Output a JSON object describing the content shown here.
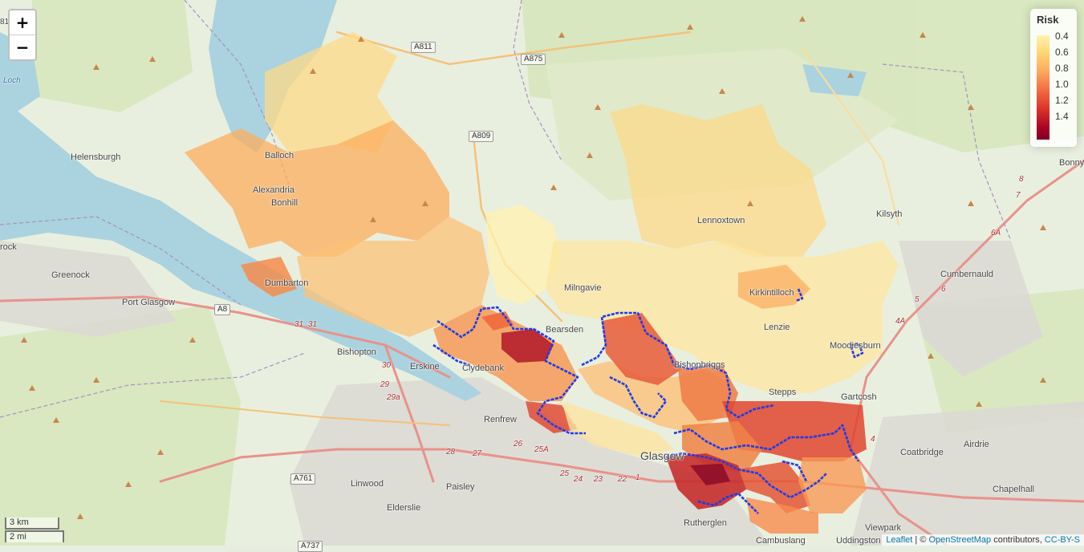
{
  "controls": {
    "zoom_in": "+",
    "zoom_out": "−"
  },
  "legend": {
    "title": "Risk",
    "labels": [
      "0.4",
      "0.6",
      "0.8",
      "1.0",
      "1.2",
      "1.4"
    ],
    "colors": [
      "#fff3b4",
      "#fed976",
      "#fdae61",
      "#f46d43",
      "#d73027",
      "#a50026",
      "#800026"
    ]
  },
  "scale": {
    "metric": "3 km",
    "imperial": "2 mi"
  },
  "attribution": {
    "leaflet": "Leaflet",
    "sep": " | © ",
    "osm": "OpenStreetMap",
    "rest": " contributors, ",
    "license": "CC-BY-S"
  },
  "places": {
    "helensburgh": "Helensburgh",
    "balloch": "Balloch",
    "alexandria": "Alexandria",
    "bonhill": "Bonhill",
    "dumbarton": "Dumbarton",
    "greenock": "Greenock",
    "port_glasgow": "Port Glasgow",
    "gourock": "rock",
    "bishopton": "Bishopton",
    "erskine": "Erskine",
    "clydebank": "Clydebank",
    "renfrew": "Renfrew",
    "linwood": "Linwood",
    "paisley": "Paisley",
    "elderslie": "Elderslie",
    "milngavie": "Milngavie",
    "bearsden": "Bearsden",
    "lennoxtown": "Lennoxtown",
    "kirkintilloch": "Kirkintilloch",
    "lenzie": "Lenzie",
    "kilsyth": "Kilsyth",
    "cumbernauld": "Cumbernauld",
    "moodiesburn": "Moodiesburn",
    "stepps": "Stepps",
    "gartcosh": "Gartcosh",
    "bishopbriggs": "Bishopbriggs",
    "glasgow": "Glasgow",
    "rutherglen": "Rutherglen",
    "cambuslang": "Cambuslang",
    "coatbridge": "Coatbridge",
    "airdrie": "Airdrie",
    "chapelhall": "Chapelhall",
    "viewpark": "Viewpark",
    "uddingston": "Uddingston",
    "bonnybridge": "Bonny",
    "loch": "Loch",
    "edge_81": "81"
  },
  "roads": {
    "a811": "A811",
    "a875": "A875",
    "a809": "A809",
    "a8": "A8",
    "a761": "A761",
    "a737": "A737"
  },
  "junctions": [
    "31",
    "31",
    "30",
    "29",
    "29a",
    "28",
    "27",
    "26",
    "25A",
    "25",
    "24",
    "23",
    "22",
    "1",
    "4",
    "4A",
    "5",
    "6",
    "6A",
    "7",
    "8"
  ],
  "icons": {
    "zoom_in": "plus-icon",
    "zoom_out": "minus-icon",
    "peak": "triangle-peak-icon"
  }
}
